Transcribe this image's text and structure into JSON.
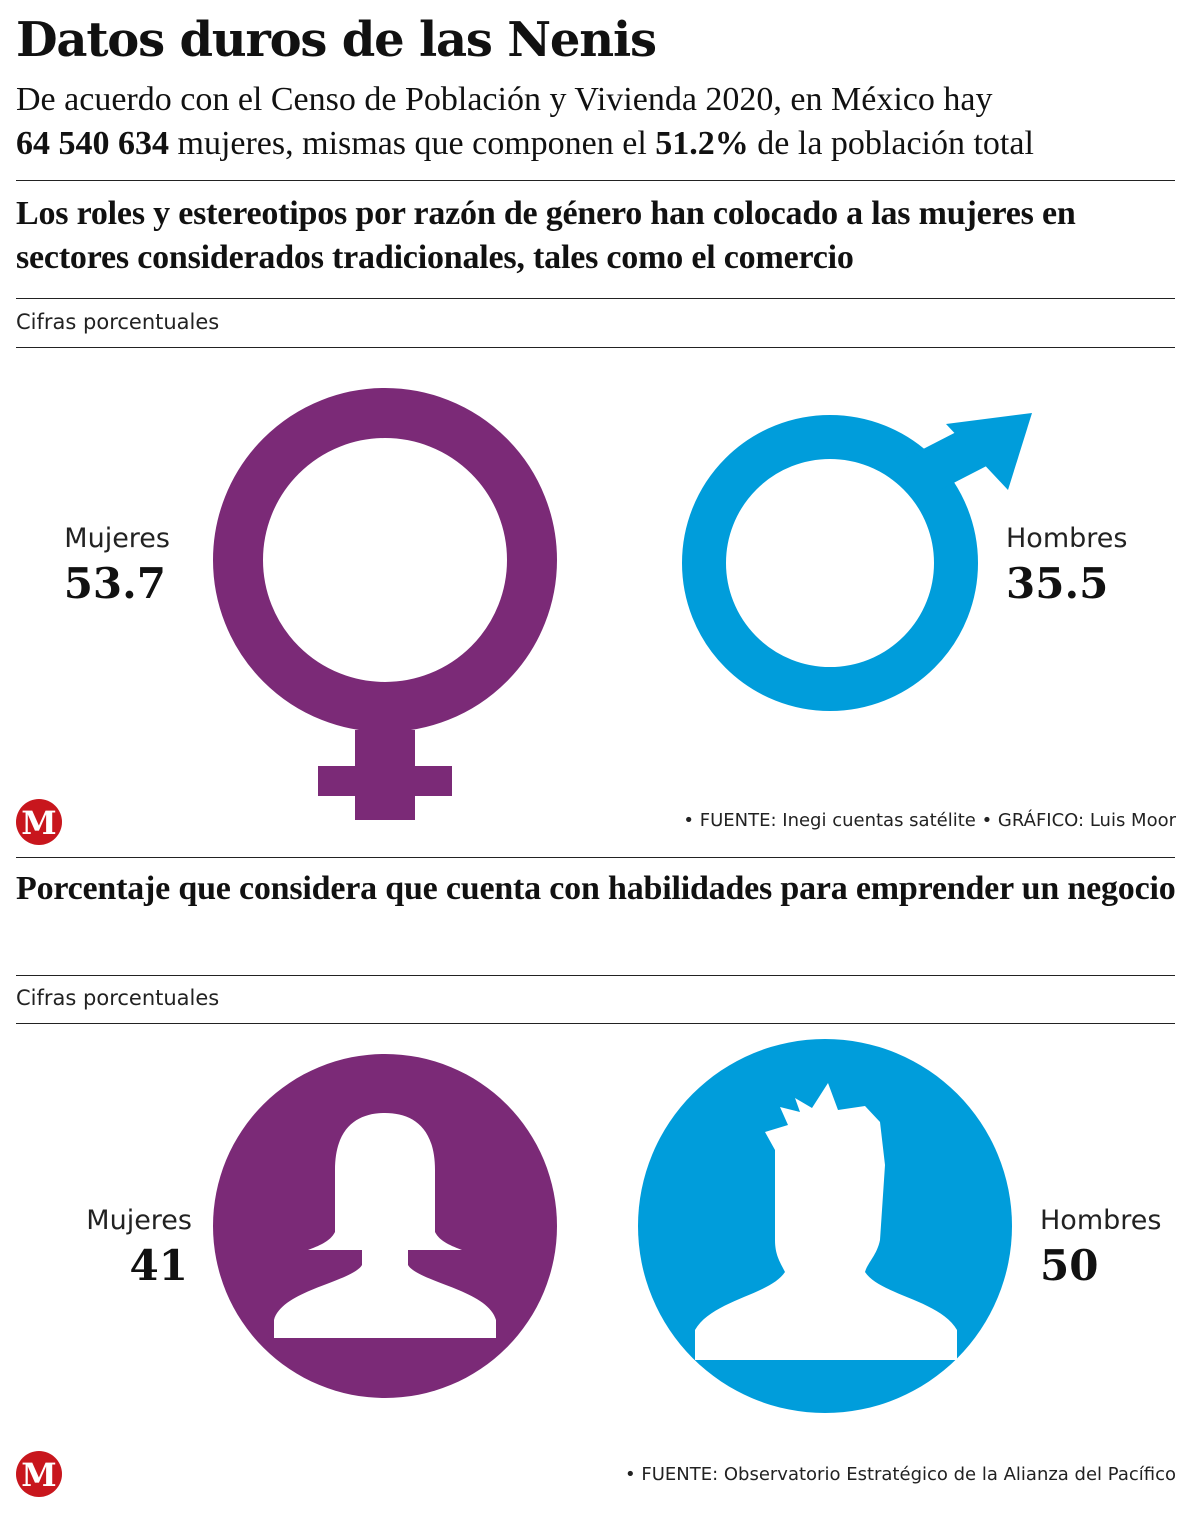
{
  "header": {
    "title": "Datos duros de las Nenis",
    "intro_part1": "De acuerdo con el Censo de Población y Vivienda 2020, en México hay",
    "intro_women_count": "64 540 634",
    "intro_part2": " mujeres, mismas que componen el ",
    "intro_percent": "51.2%",
    "intro_part3": " de la población total"
  },
  "section1": {
    "title": "Los roles y estereotipos por razón de género han colocado a las mujeres en sectores considerados tradicionales, tales como el comercio",
    "units": "Cifras porcentuales",
    "source": "• FUENTE: Inegi cuentas satélite  • GRÁFICO: Luis Moor"
  },
  "section2": {
    "title": "Porcentaje que considera que cuenta con habilidades para emprender un negocio",
    "units": "Cifras porcentuales",
    "source": "• FUENTE: Observatorio Estratégico de la Alianza del Pacífico"
  },
  "logo_letter": "M",
  "colors": {
    "women": "#7b2a77",
    "men": "#009ddb",
    "logo": "#c8161d"
  },
  "chart_data": [
    {
      "type": "table",
      "title": "Los roles y estereotipos por razón de género han colocado a las mujeres en sectores considerados tradicionales, tales como el comercio",
      "units": "Cifras porcentuales",
      "categories": [
        "Mujeres",
        "Hombres"
      ],
      "values": [
        53.7,
        35.5
      ],
      "value_labels": [
        "53.7",
        "35.5"
      ]
    },
    {
      "type": "table",
      "title": "Porcentaje que considera que cuenta con habilidades para emprender un negocio",
      "units": "Cifras porcentuales",
      "categories": [
        "Mujeres",
        "Hombres"
      ],
      "values": [
        41,
        50
      ],
      "value_labels": [
        "41",
        "50"
      ]
    }
  ]
}
